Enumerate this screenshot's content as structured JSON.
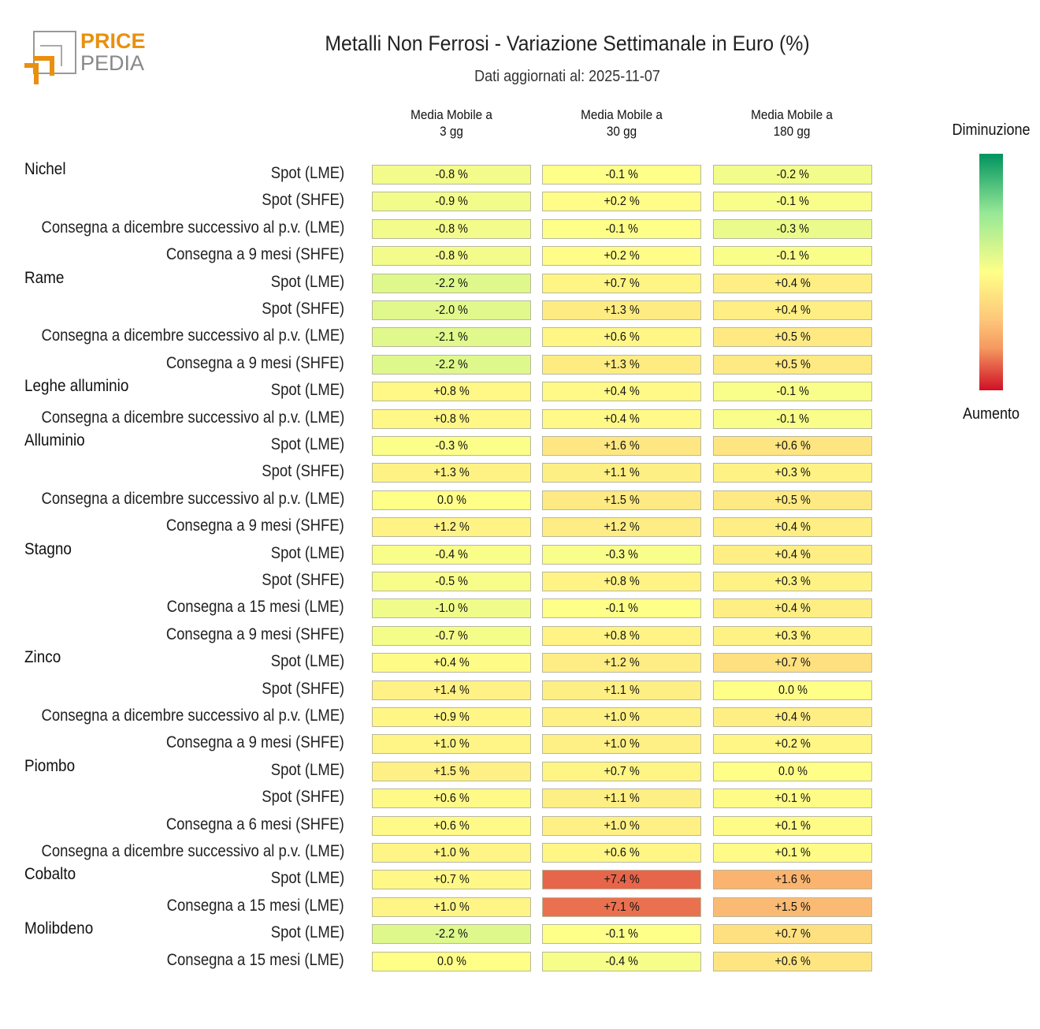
{
  "header": {
    "logo_text_top": "PRICE",
    "logo_text_bottom": "PEDIA",
    "title": "Metalli Non Ferrosi - Variazione Settimanale in Euro (%)",
    "subtitle": "Dati aggiornati al: 2025-11-07"
  },
  "legend": {
    "top": "Diminuzione",
    "bottom": "Aumento",
    "colors": [
      "#00935f",
      "#96e896",
      "#ffff88",
      "#fdc77a",
      "#f59a60",
      "#d01026"
    ]
  },
  "chart_data": {
    "type": "heatmap",
    "title": "Metalli Non Ferrosi - Variazione Settimanale in Euro (%)",
    "columns": [
      [
        "Media Mobile a",
        "3 gg"
      ],
      [
        "Media Mobile a",
        "30 gg"
      ],
      [
        "Media Mobile a",
        "180 gg"
      ]
    ],
    "color_scale_max": [
      14,
      9.5,
      3.2
    ],
    "unit": "%",
    "rows": [
      {
        "group": "Nichel",
        "label": "Spot (LME)",
        "values": [
          -0.8,
          -0.1,
          -0.2
        ]
      },
      {
        "group": "",
        "label": "Spot (SHFE)",
        "values": [
          -0.9,
          0.2,
          -0.1
        ]
      },
      {
        "group": "",
        "label": "Consegna a dicembre successivo al p.v. (LME)",
        "values": [
          -0.8,
          -0.1,
          -0.3
        ]
      },
      {
        "group": "",
        "label": "Consegna a 9 mesi (SHFE)",
        "values": [
          -0.8,
          0.2,
          -0.1
        ]
      },
      {
        "group": "Rame",
        "label": "Spot (LME)",
        "values": [
          -2.2,
          0.7,
          0.4
        ]
      },
      {
        "group": "",
        "label": "Spot (SHFE)",
        "values": [
          -2.0,
          1.3,
          0.4
        ]
      },
      {
        "group": "",
        "label": "Consegna a dicembre successivo al p.v. (LME)",
        "values": [
          -2.1,
          0.6,
          0.5
        ]
      },
      {
        "group": "",
        "label": "Consegna a 9 mesi (SHFE)",
        "values": [
          -2.2,
          1.3,
          0.5
        ]
      },
      {
        "group": "Leghe alluminio",
        "label": "Spot (LME)",
        "values": [
          0.8,
          0.4,
          -0.1
        ]
      },
      {
        "group": "",
        "label": "Consegna a dicembre successivo al p.v. (LME)",
        "values": [
          0.8,
          0.4,
          -0.1
        ]
      },
      {
        "group": "Alluminio",
        "label": "Spot (LME)",
        "values": [
          -0.3,
          1.6,
          0.6
        ]
      },
      {
        "group": "",
        "label": "Spot (SHFE)",
        "values": [
          1.3,
          1.1,
          0.3
        ]
      },
      {
        "group": "",
        "label": "Consegna a dicembre successivo al p.v. (LME)",
        "values": [
          0.0,
          1.5,
          0.5
        ]
      },
      {
        "group": "",
        "label": "Consegna a 9 mesi (SHFE)",
        "values": [
          1.2,
          1.2,
          0.4
        ]
      },
      {
        "group": "Stagno",
        "label": "Spot (LME)",
        "values": [
          -0.4,
          -0.3,
          0.4
        ]
      },
      {
        "group": "",
        "label": "Spot (SHFE)",
        "values": [
          -0.5,
          0.8,
          0.3
        ]
      },
      {
        "group": "",
        "label": "Consegna a 15 mesi (LME)",
        "values": [
          -1.0,
          -0.1,
          0.4
        ]
      },
      {
        "group": "",
        "label": "Consegna a 9 mesi (SHFE)",
        "values": [
          -0.7,
          0.8,
          0.3
        ]
      },
      {
        "group": "Zinco",
        "label": "Spot (LME)",
        "values": [
          0.4,
          1.2,
          0.7
        ]
      },
      {
        "group": "",
        "label": "Spot (SHFE)",
        "values": [
          1.4,
          1.1,
          0.0
        ]
      },
      {
        "group": "",
        "label": "Consegna a dicembre successivo al p.v. (LME)",
        "values": [
          0.9,
          1.0,
          0.4
        ]
      },
      {
        "group": "",
        "label": "Consegna a 9 mesi (SHFE)",
        "values": [
          1.0,
          1.0,
          0.2
        ]
      },
      {
        "group": "Piombo",
        "label": "Spot (LME)",
        "values": [
          1.5,
          0.7,
          0.0
        ]
      },
      {
        "group": "",
        "label": "Spot (SHFE)",
        "values": [
          0.6,
          1.1,
          0.1
        ]
      },
      {
        "group": "",
        "label": "Consegna a 6 mesi (SHFE)",
        "values": [
          0.6,
          1.0,
          0.1
        ]
      },
      {
        "group": "",
        "label": "Consegna a dicembre successivo al p.v. (LME)",
        "values": [
          1.0,
          0.6,
          0.1
        ]
      },
      {
        "group": "Cobalto",
        "label": "Spot (LME)",
        "values": [
          0.7,
          7.4,
          1.6
        ]
      },
      {
        "group": "",
        "label": "Consegna a 15 mesi (LME)",
        "values": [
          1.0,
          7.1,
          1.5
        ]
      },
      {
        "group": "Molibdeno",
        "label": "Spot (LME)",
        "values": [
          -2.2,
          -0.1,
          0.7
        ]
      },
      {
        "group": "",
        "label": "Consegna a 15 mesi (LME)",
        "values": [
          0.0,
          -0.4,
          0.6
        ]
      }
    ]
  }
}
